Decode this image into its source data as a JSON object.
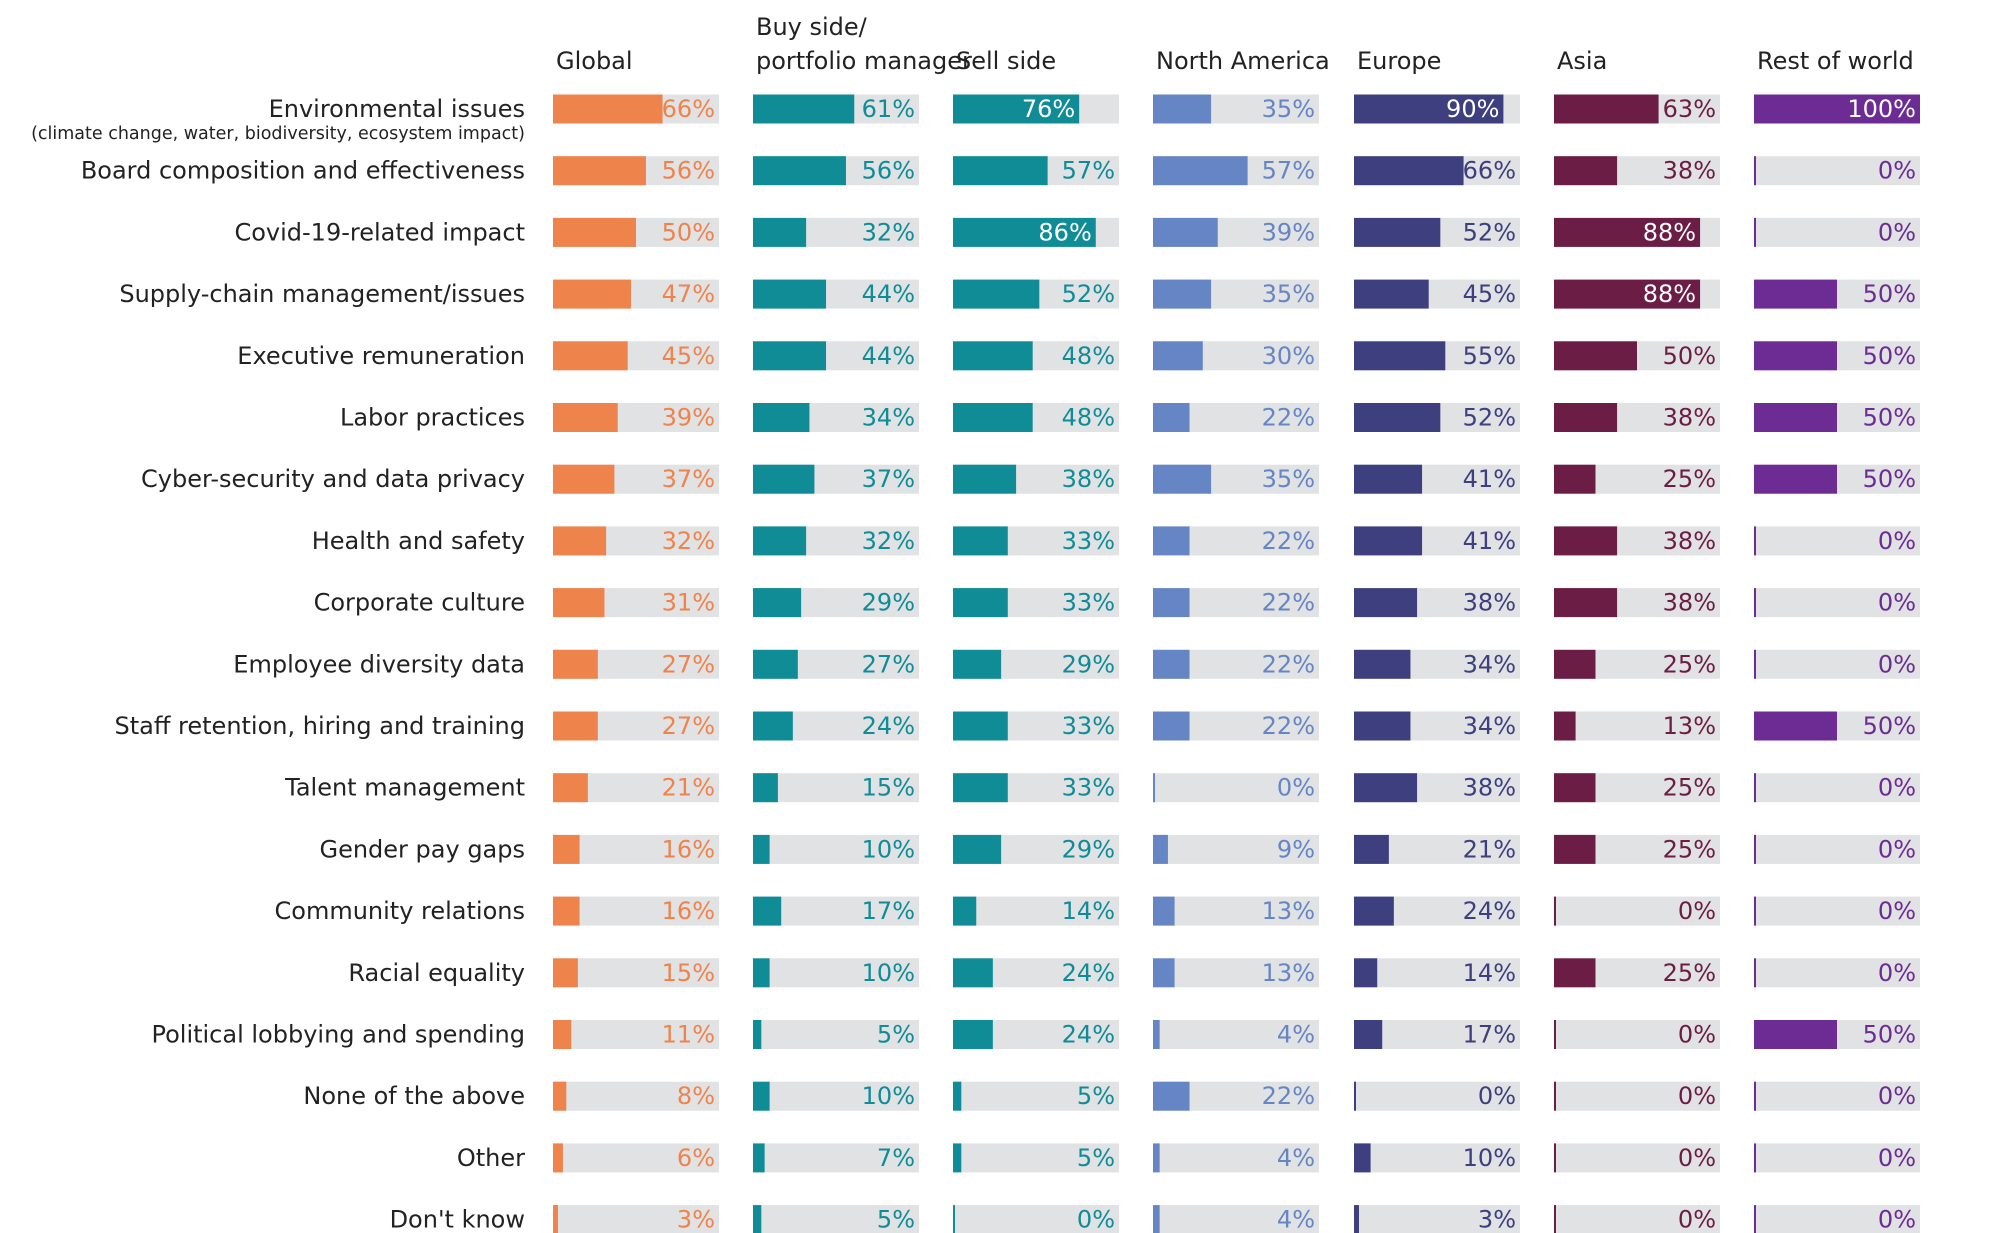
{
  "chart_data": {
    "type": "bar",
    "orientation": "horizontal",
    "xlim": [
      0,
      100
    ],
    "unit": "%",
    "categories": [
      {
        "label": "Environmental issues",
        "sublabel": "(climate change, water, biodiversity, ecosystem impact)"
      },
      {
        "label": "Board composition and effectiveness"
      },
      {
        "label": "Covid-19-related impact"
      },
      {
        "label": "Supply-chain management/issues"
      },
      {
        "label": "Executive remuneration"
      },
      {
        "label": "Labor practices"
      },
      {
        "label": "Cyber-security and data privacy"
      },
      {
        "label": "Health and safety"
      },
      {
        "label": "Corporate culture"
      },
      {
        "label": "Employee diversity data"
      },
      {
        "label": "Staff retention, hiring and training"
      },
      {
        "label": "Talent management"
      },
      {
        "label": "Gender pay gaps"
      },
      {
        "label": "Community relations"
      },
      {
        "label": "Racial equality"
      },
      {
        "label": "Political lobbying and spending"
      },
      {
        "label": "None of the above"
      },
      {
        "label": "Other"
      },
      {
        "label": "Don't know"
      }
    ],
    "series": [
      {
        "name": "Global",
        "color": "#ef834c",
        "values": [
          66,
          56,
          50,
          47,
          45,
          39,
          37,
          32,
          31,
          27,
          27,
          21,
          16,
          16,
          15,
          11,
          8,
          6,
          3
        ]
      },
      {
        "name": "Buy side/\nportfolio manager",
        "color": "#0f8c96",
        "values": [
          61,
          56,
          32,
          44,
          44,
          34,
          37,
          32,
          29,
          27,
          24,
          15,
          10,
          17,
          10,
          5,
          10,
          7,
          5
        ]
      },
      {
        "name": "Sell side",
        "color": "#0f8c96",
        "values": [
          76,
          57,
          86,
          52,
          48,
          48,
          38,
          33,
          33,
          29,
          33,
          33,
          29,
          14,
          24,
          24,
          5,
          5,
          0
        ]
      },
      {
        "name": "North America",
        "color": "#6685c4",
        "values": [
          35,
          57,
          39,
          35,
          30,
          22,
          35,
          22,
          22,
          22,
          22,
          0,
          9,
          13,
          13,
          4,
          22,
          4,
          4
        ]
      },
      {
        "name": "Europe",
        "color": "#3d3f7e",
        "values": [
          90,
          66,
          52,
          45,
          55,
          52,
          41,
          41,
          38,
          34,
          34,
          38,
          21,
          24,
          14,
          17,
          0,
          10,
          3
        ]
      },
      {
        "name": "Asia",
        "color": "#6b1d45",
        "values": [
          63,
          38,
          88,
          88,
          50,
          38,
          25,
          38,
          38,
          25,
          13,
          25,
          25,
          0,
          25,
          0,
          0,
          0,
          0
        ]
      },
      {
        "name": "Rest of world",
        "color": "#6c2c94",
        "values": [
          100,
          0,
          0,
          50,
          50,
          50,
          50,
          0,
          0,
          0,
          50,
          0,
          0,
          0,
          0,
          50,
          0,
          0,
          0
        ]
      }
    ],
    "track_color": "#e1e2e4",
    "value_label_inside_color": "#ffffff"
  }
}
